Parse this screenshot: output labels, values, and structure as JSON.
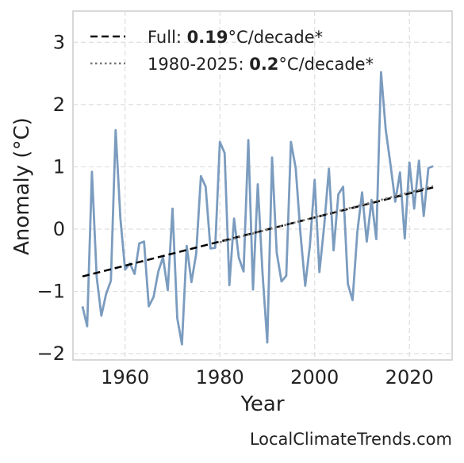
{
  "chart_data": {
    "type": "line",
    "xlabel": "Year",
    "ylabel": "Anomaly (°C)",
    "xlim": [
      1949,
      2029
    ],
    "ylim": [
      -2.1,
      3.5
    ],
    "x_ticks": [
      1960,
      1980,
      2000,
      2020
    ],
    "y_ticks": [
      -2,
      -1,
      0,
      1,
      2,
      3
    ],
    "y_tick_labels": [
      "−2",
      "−1",
      "0",
      "1",
      "2",
      "3"
    ],
    "grid": true,
    "legend_position": "top-left",
    "series": [
      {
        "color": "#7b9cbf",
        "x": [
          1951,
          1952,
          1953,
          1954,
          1955,
          1956,
          1957,
          1958,
          1959,
          1960,
          1961,
          1962,
          1963,
          1964,
          1965,
          1966,
          1967,
          1968,
          1969,
          1970,
          1971,
          1972,
          1973,
          1974,
          1975,
          1976,
          1977,
          1978,
          1979,
          1980,
          1981,
          1982,
          1983,
          1984,
          1985,
          1986,
          1987,
          1988,
          1989,
          1990,
          1991,
          1992,
          1993,
          1994,
          1995,
          1996,
          1997,
          1998,
          1999,
          2000,
          2001,
          2002,
          2003,
          2004,
          2005,
          2006,
          2007,
          2008,
          2009,
          2010,
          2011,
          2012,
          2013,
          2014,
          2015,
          2016,
          2017,
          2018,
          2019,
          2020,
          2021,
          2022,
          2023,
          2024,
          2025
        ],
        "values": [
          -1.24,
          -1.56,
          0.92,
          -0.77,
          -1.39,
          -1.04,
          -0.83,
          1.59,
          0.17,
          -0.65,
          -0.55,
          -0.72,
          -0.23,
          -0.2,
          -1.24,
          -1.09,
          -0.68,
          -0.45,
          -0.98,
          0.33,
          -1.43,
          -1.85,
          -0.27,
          -0.85,
          -0.4,
          0.85,
          0.68,
          -0.31,
          -0.3,
          1.4,
          1.22,
          -0.9,
          0.17,
          -0.46,
          -0.68,
          1.43,
          -0.97,
          0.72,
          -0.71,
          -1.82,
          1.15,
          -0.38,
          -0.84,
          -0.75,
          1.4,
          0.98,
          -0.07,
          -0.91,
          -0.25,
          0.79,
          -0.69,
          0.05,
          0.97,
          -0.34,
          0.56,
          0.68,
          -0.88,
          -1.14,
          -0.05,
          0.59,
          -0.2,
          0.47,
          -0.16,
          2.52,
          1.6,
          1.04,
          0.44,
          0.91,
          -0.15,
          1.07,
          0.33,
          1.1,
          0.21,
          0.98,
          1.01
        ]
      }
    ],
    "trend_lines": [
      {
        "label_prefix": "Full: ",
        "rate": "0.19",
        "unit": "°C/decade*",
        "style": "dashed",
        "color": "#000000",
        "x": [
          1951,
          2025
        ],
        "y": [
          -0.76,
          0.67
        ]
      },
      {
        "label_prefix": "1980-2025: ",
        "rate": "0.2",
        "unit": "°C/decade*",
        "style": "dotted",
        "color": "#777777",
        "x": [
          1980,
          2025
        ],
        "y": [
          -0.21,
          0.69
        ]
      }
    ],
    "watermark": "LocalClimateTrends.com"
  }
}
